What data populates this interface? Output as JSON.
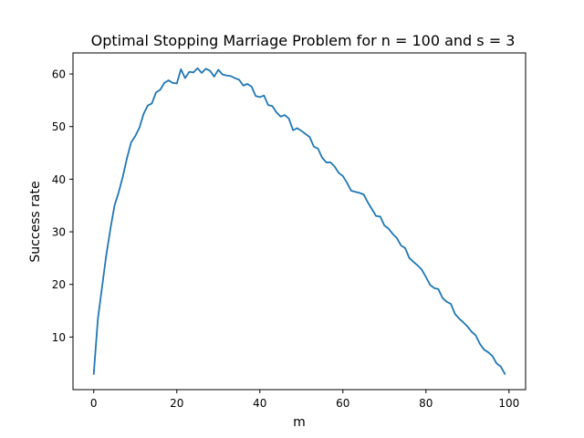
{
  "chart_data": {
    "type": "line",
    "title": "Optimal Stopping Marriage Problem for n = 100 and s = 3",
    "xlabel": "m",
    "ylabel": "Success rate",
    "xlim": [
      -5,
      104
    ],
    "ylim": [
      0,
      64
    ],
    "xticks": [
      0,
      20,
      40,
      60,
      80,
      100
    ],
    "yticks": [
      10,
      20,
      30,
      40,
      50,
      60
    ],
    "grid": false,
    "legend": "none",
    "line_color": "#1f77b4",
    "series": [
      {
        "x": [
          0,
          1,
          2,
          3,
          4,
          5,
          6,
          7,
          8,
          9,
          10,
          11,
          12,
          13,
          14,
          15,
          16,
          17,
          18,
          19,
          20,
          21,
          22,
          23,
          24,
          25,
          26,
          27,
          28,
          29,
          30,
          31,
          32,
          33,
          34,
          35,
          36,
          37,
          38,
          39,
          40,
          41,
          42,
          43,
          44,
          45,
          46,
          47,
          48,
          49,
          50,
          51,
          52,
          53,
          54,
          55,
          56,
          57,
          58,
          59,
          60,
          61,
          62,
          63,
          64,
          65,
          66,
          67,
          68,
          69,
          70,
          71,
          72,
          73,
          74,
          75,
          76,
          77,
          78,
          79,
          80,
          81,
          82,
          83,
          84,
          85,
          86,
          87,
          88,
          89,
          90,
          91,
          92,
          93,
          94,
          95,
          96,
          97,
          98,
          99
        ],
        "y": [
          3.0,
          13.5,
          19.5,
          25.5,
          30.5,
          35.0,
          37.5,
          40.5,
          44.0,
          47.0,
          48.2,
          49.8,
          52.4,
          54.0,
          54.4,
          56.5,
          57.0,
          58.3,
          58.8,
          58.3,
          58.2,
          60.9,
          59.2,
          60.4,
          60.3,
          61.1,
          60.2,
          61.0,
          60.6,
          59.5,
          60.8,
          59.9,
          59.7,
          59.6,
          59.2,
          58.9,
          57.8,
          58.1,
          57.6,
          55.8,
          55.6,
          55.9,
          54.1,
          53.9,
          52.7,
          51.9,
          52.2,
          51.5,
          49.3,
          49.7,
          49.2,
          48.6,
          48.0,
          46.2,
          45.8,
          44.1,
          43.2,
          43.2,
          42.4,
          41.2,
          40.6,
          39.3,
          37.8,
          37.6,
          37.4,
          37.1,
          35.6,
          34.3,
          33.0,
          32.9,
          31.2,
          30.6,
          29.6,
          28.8,
          27.4,
          26.9,
          25.0,
          24.3,
          23.6,
          22.8,
          21.4,
          19.9,
          19.3,
          19.1,
          17.4,
          16.7,
          16.3,
          14.4,
          13.5,
          12.8,
          12.0,
          11.0,
          10.3,
          8.7,
          7.6,
          7.1,
          6.4,
          5.0,
          4.4,
          3.0
        ]
      }
    ]
  }
}
